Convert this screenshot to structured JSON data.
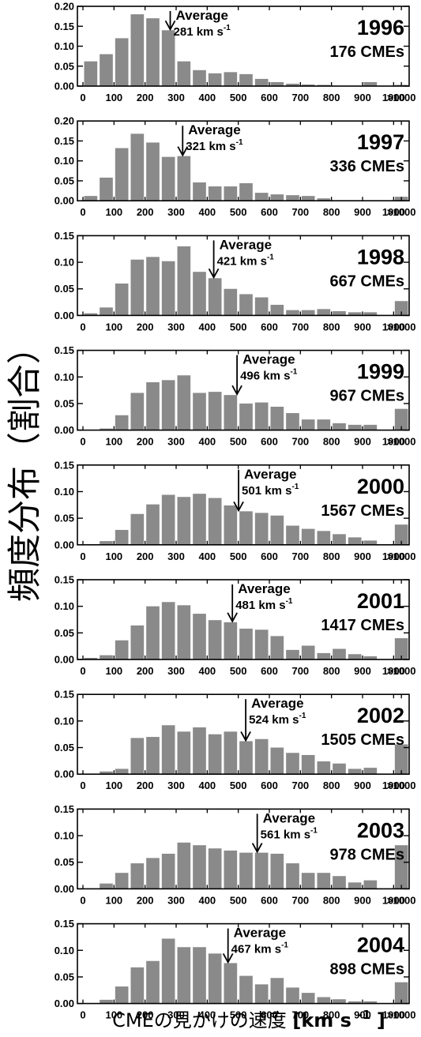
{
  "ylabel": "頻度分布（割合）",
  "xlabel_main": "CMEの見かけの速度 ",
  "xlabel_unit": "[km s",
  "xlabel_exp": "-1",
  "xlabel_close": "]",
  "chart_data": {
    "type": "bar",
    "x_categories": [
      "0-50",
      "50-100",
      "100-150",
      "150-200",
      "200-250",
      "250-300",
      "300-350",
      "350-400",
      "400-450",
      "450-500",
      "500-550",
      "550-600",
      "600-650",
      "650-700",
      "700-750",
      "750-800",
      "800-850",
      "850-900",
      "900-950",
      "950-1000",
      ">1000"
    ],
    "x_tick_labels": [
      "0",
      "100",
      "200",
      "300",
      "400",
      "500",
      "600",
      "700",
      "800",
      "900",
      "1000",
      ">1000"
    ],
    "average_label": "Average",
    "unit_text": "km s",
    "unit_exp": "-1",
    "panels": [
      {
        "year": "1996",
        "count_label": "176 CMEs",
        "average": 281,
        "ylim": [
          0,
          0.2
        ],
        "yticks": [
          "0.00",
          "0.05",
          "0.10",
          "0.15",
          "0.20"
        ],
        "values": [
          0.062,
          0.08,
          0.12,
          0.18,
          0.17,
          0.14,
          0.062,
          0.04,
          0.032,
          0.035,
          0.03,
          0.018,
          0.01,
          0.006,
          0.004,
          0.003,
          0,
          0,
          0.01,
          0,
          0.003
        ]
      },
      {
        "year": "1997",
        "count_label": "336 CMEs",
        "average": 321,
        "ylim": [
          0,
          0.2
        ],
        "yticks": [
          "0.00",
          "0.05",
          "0.10",
          "0.15",
          "0.20"
        ],
        "values": [
          0.012,
          0.058,
          0.132,
          0.168,
          0.146,
          0.11,
          0.112,
          0.046,
          0.036,
          0.036,
          0.044,
          0.02,
          0.016,
          0.014,
          0.012,
          0.006,
          0,
          0,
          0,
          0,
          0.01
        ]
      },
      {
        "year": "1998",
        "count_label": "667 CMEs",
        "average": 421,
        "ylim": [
          0,
          0.15
        ],
        "yticks": [
          "0.00",
          "0.05",
          "0.10",
          "0.15"
        ],
        "values": [
          0.004,
          0.015,
          0.06,
          0.105,
          0.11,
          0.102,
          0.13,
          0.082,
          0.07,
          0.05,
          0.04,
          0.034,
          0.02,
          0.01,
          0.01,
          0.012,
          0.008,
          0.006,
          0.006,
          0,
          0.027
        ]
      },
      {
        "year": "1999",
        "count_label": "967 CMEs",
        "average": 496,
        "ylim": [
          0,
          0.15
        ],
        "yticks": [
          "0.00",
          "0.05",
          "0.10",
          "0.15"
        ],
        "values": [
          0,
          0.003,
          0.028,
          0.07,
          0.09,
          0.094,
          0.103,
          0.07,
          0.072,
          0.066,
          0.05,
          0.052,
          0.044,
          0.032,
          0.02,
          0.02,
          0.013,
          0.01,
          0.01,
          0,
          0.04
        ]
      },
      {
        "year": "2000",
        "count_label": "1567 CMEs",
        "average": 501,
        "ylim": [
          0,
          0.15
        ],
        "yticks": [
          "0.00",
          "0.05",
          "0.10",
          "0.15"
        ],
        "values": [
          0,
          0.007,
          0.028,
          0.058,
          0.076,
          0.094,
          0.09,
          0.096,
          0.088,
          0.074,
          0.063,
          0.06,
          0.055,
          0.036,
          0.03,
          0.026,
          0.02,
          0.014,
          0.008,
          0,
          0.038
        ]
      },
      {
        "year": "2001",
        "count_label": "1417 CMEs",
        "average": 481,
        "ylim": [
          0,
          0.15
        ],
        "yticks": [
          "0.00",
          "0.05",
          "0.10",
          "0.15"
        ],
        "values": [
          0.003,
          0.008,
          0.036,
          0.064,
          0.1,
          0.108,
          0.102,
          0.086,
          0.074,
          0.07,
          0.058,
          0.056,
          0.044,
          0.018,
          0.026,
          0.012,
          0.02,
          0.01,
          0.006,
          0,
          0.04
        ]
      },
      {
        "year": "2002",
        "count_label": "1505 CMEs",
        "average": 524,
        "ylim": [
          0,
          0.15
        ],
        "yticks": [
          "0.00",
          "0.05",
          "0.10",
          "0.15"
        ],
        "values": [
          0,
          0.005,
          0.01,
          0.068,
          0.07,
          0.092,
          0.08,
          0.088,
          0.075,
          0.08,
          0.062,
          0.066,
          0.05,
          0.04,
          0.036,
          0.024,
          0.02,
          0.01,
          0.012,
          0,
          0.056
        ]
      },
      {
        "year": "2003",
        "count_label": "978 CMEs",
        "average": 561,
        "ylim": [
          0,
          0.15
        ],
        "yticks": [
          "0.00",
          "0.05",
          "0.10",
          "0.15"
        ],
        "values": [
          0,
          0.01,
          0.03,
          0.048,
          0.058,
          0.066,
          0.087,
          0.082,
          0.076,
          0.072,
          0.068,
          0.068,
          0.066,
          0.048,
          0.03,
          0.03,
          0.024,
          0.012,
          0.016,
          0,
          0.082
        ]
      },
      {
        "year": "2004",
        "count_label": "898 CMEs",
        "average": 467,
        "ylim": [
          0,
          0.15
        ],
        "yticks": [
          "0.00",
          "0.05",
          "0.10",
          "0.15"
        ],
        "values": [
          0,
          0.007,
          0.032,
          0.068,
          0.08,
          0.122,
          0.106,
          0.106,
          0.094,
          0.076,
          0.052,
          0.036,
          0.048,
          0.03,
          0.02,
          0.012,
          0.008,
          0.004,
          0.004,
          0,
          0.04
        ]
      }
    ]
  }
}
